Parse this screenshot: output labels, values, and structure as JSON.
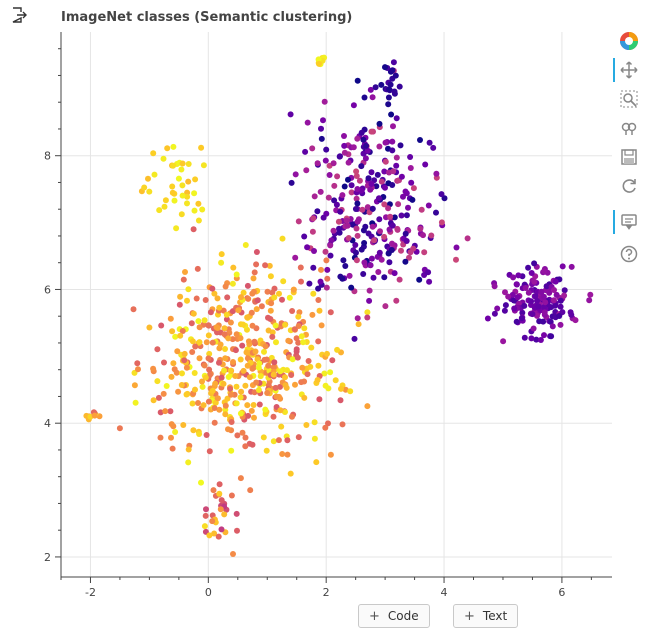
{
  "output_icon": "output-arrow-icon",
  "toolbar": {
    "logo_icon": "bokeh-logo-icon",
    "tools": [
      {
        "name": "pan",
        "icon": "pan-icon",
        "active": true
      },
      {
        "name": "box-zoom",
        "icon": "box-zoom-icon",
        "active": false
      },
      {
        "name": "wheel-zoom",
        "icon": "wheel-zoom-icon",
        "active": false
      },
      {
        "name": "save",
        "icon": "save-icon",
        "active": false
      },
      {
        "name": "reset",
        "icon": "reset-icon",
        "active": false
      },
      {
        "name": "hover",
        "icon": "hover-icon",
        "active": true
      },
      {
        "name": "help",
        "icon": "help-icon",
        "active": false
      }
    ]
  },
  "buttons": {
    "code_label": "Code",
    "text_label": "Text",
    "plus": "+"
  },
  "chart_data": {
    "type": "scatter",
    "title": "ImageNet classes (Semantic clustering)",
    "xlabel": "",
    "ylabel": "",
    "xlim": [
      -2.5,
      6.85
    ],
    "ylim": [
      1.7,
      9.85
    ],
    "xticks": [
      -2,
      0,
      2,
      4,
      6
    ],
    "yticks": [
      2,
      4,
      6,
      8
    ],
    "grid": true,
    "colormap": "plasma",
    "colors": {
      "stops": [
        "#0d0887",
        "#46039f",
        "#7201a8",
        "#9c179e",
        "#bd3786",
        "#d8576b",
        "#ed7953",
        "#fb9f3a",
        "#fdca26",
        "#f0f921"
      ],
      "grid": "#e5e5e5",
      "axis": "#444444"
    },
    "clusters": [
      {
        "name": "main-left",
        "x_range": [
          -1.5,
          2.7
        ],
        "y_range": [
          3.0,
          6.9
        ],
        "color_range": [
          0.55,
          1.0
        ],
        "count": 520
      },
      {
        "name": "upper-left-yellow",
        "x_range": [
          -1.3,
          0.3
        ],
        "y_range": [
          6.9,
          8.4
        ],
        "color_range": [
          0.85,
          1.0
        ],
        "count": 40
      },
      {
        "name": "bottom-left-stem",
        "x_range": [
          -0.2,
          0.6
        ],
        "y_range": [
          1.9,
          3.2
        ],
        "color_range": [
          0.45,
          0.95
        ],
        "count": 28
      },
      {
        "name": "upper-right-purple",
        "x_range": [
          1.1,
          4.4
        ],
        "y_range": [
          5.2,
          9.3
        ],
        "color_range": [
          0.0,
          0.5
        ],
        "count": 320
      },
      {
        "name": "top-right-tail",
        "x_range": [
          2.8,
          3.3
        ],
        "y_range": [
          8.7,
          9.45
        ],
        "color_range": [
          0.0,
          0.15
        ],
        "count": 20
      },
      {
        "name": "far-right-cluster",
        "x_range": [
          4.7,
          6.5
        ],
        "y_range": [
          5.1,
          6.5
        ],
        "color_range": [
          0.1,
          0.35
        ],
        "count": 150
      },
      {
        "name": "left-outlier-group",
        "x_range": [
          -2.1,
          -1.8
        ],
        "y_range": [
          4.05,
          4.2
        ],
        "color_range": [
          0.6,
          1.0
        ],
        "count": 10
      },
      {
        "name": "top-yellow-group",
        "x_range": [
          1.8,
          2.1
        ],
        "y_range": [
          9.35,
          9.48
        ],
        "color_range": [
          0.85,
          1.0
        ],
        "count": 10
      }
    ]
  }
}
